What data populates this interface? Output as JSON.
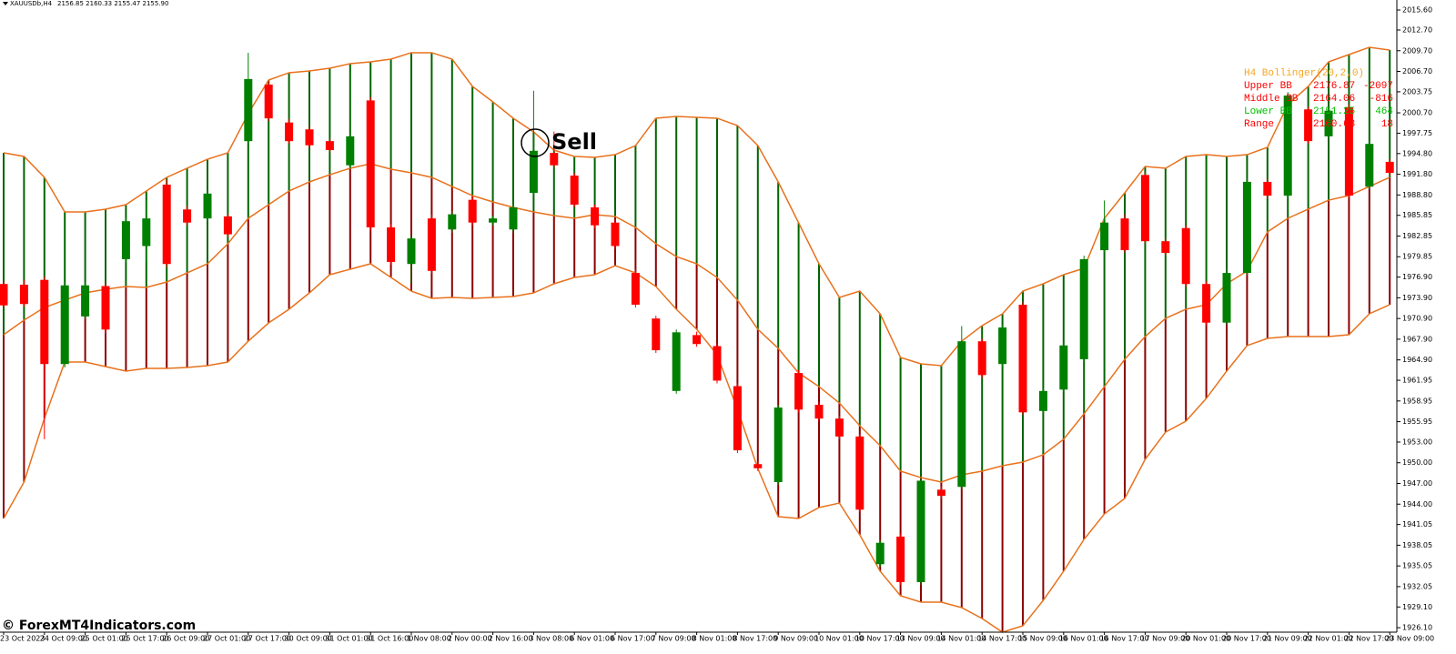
{
  "chart_data": {
    "type": "candlestick",
    "title": "XAUUSDb,H4",
    "subtitle": "2156.85 2160.33 2155.47 2155.90",
    "categories": [
      "23 Oct 2023",
      null,
      "24 Oct 09:00",
      null,
      "25 Oct 01:00",
      null,
      "25 Oct 17:00",
      null,
      "26 Oct 09:00",
      null,
      "27 Oct 01:00",
      null,
      "27 Oct 17:00",
      null,
      "30 Oct 09:00",
      null,
      "31 Oct 01:00",
      null,
      "31 Oct 16:00",
      null,
      "1 Nov 08:00",
      null,
      "2 Nov 00:00",
      null,
      "2 Nov 16:00",
      null,
      "3 Nov 08:00",
      null,
      "6 Nov 01:00",
      null,
      "6 Nov 17:00",
      null,
      "7 Nov 09:00",
      null,
      "8 Nov 01:00",
      null,
      "8 Nov 17:00",
      null,
      "9 Nov 09:00",
      null,
      "10 Nov 01:00",
      null,
      "10 Nov 17:00",
      null,
      "13 Nov 09:00",
      null,
      "14 Nov 01:00",
      null,
      "14 Nov 17:00",
      null,
      "15 Nov 09:00",
      null,
      "16 Nov 01:00",
      null,
      "16 Nov 17:00",
      null,
      "17 Nov 09:00",
      null,
      "20 Nov 01:00",
      null,
      "20 Nov 17:00",
      null,
      "21 Nov 09:00",
      null,
      "22 Nov 01:00",
      null,
      "22 Nov 17:00",
      null,
      "23 Nov 09:00"
    ],
    "open": [
      1975.9,
      1975.8,
      1976.5,
      1964.3,
      1971.2,
      1975.6,
      1979.5,
      1981.4,
      1990.3,
      1986.7,
      1985.4,
      1985.7,
      1996.6,
      2004.8,
      1999.3,
      1998.3,
      1996.6,
      1993.1,
      2002.5,
      1984.1,
      1978.8,
      1985.4,
      1983.8,
      1988.1,
      1984.8,
      1983.8,
      1989.1,
      1994.9,
      1991.6,
      1987.0,
      1984.8,
      1977.5,
      1970.9,
      1960.4,
      1968.5,
      1966.9,
      1961.1,
      1949.8,
      1947.2,
      1963.0,
      1958.4,
      1956.4,
      1953.8,
      1935.3,
      1939.3,
      1932.7,
      1946.1,
      1946.5,
      1967.6,
      1964.3,
      1972.9,
      1957.5,
      1960.6,
      1965.0,
      1980.8,
      1985.4,
      1991.7,
      1982.1,
      1984.0,
      1975.9,
      1970.3,
      1977.5,
      1990.7,
      1988.7,
      2001.2,
      1997.3,
      2001.5,
      1990.0,
      1993.6
    ],
    "high": [
      1976.3,
      1976.5,
      1977.0,
      1976.2,
      1976.2,
      1976.0,
      1985.5,
      1988.0,
      1991.0,
      1987.2,
      1989.5,
      1986.1,
      2009.4,
      2005.3,
      1999.8,
      1998.7,
      1997.0,
      1997.6,
      2003.0,
      1984.6,
      1983.0,
      1986.0,
      1986.5,
      1988.6,
      1985.8,
      1987.5,
      2003.9,
      1998.0,
      1992.0,
      1987.4,
      1985.2,
      1978.0,
      1971.3,
      1969.3,
      1969.0,
      1967.3,
      1961.5,
      1950.2,
      1958.4,
      1963.4,
      1958.8,
      1956.8,
      1954.2,
      1938.8,
      1939.7,
      1947.8,
      1946.5,
      1969.8,
      1968.0,
      1970.0,
      1973.3,
      1960.8,
      1967.4,
      1980.0,
      1988.0,
      1986.0,
      1992.1,
      1982.5,
      1984.4,
      1976.3,
      1978.0,
      1991.2,
      1991.2,
      2003.7,
      2001.6,
      2001.4,
      2002.0,
      1996.6,
      1994.0
    ],
    "low": [
      1972.5,
      1972.6,
      1953.4,
      1963.8,
      1970.8,
      1968.8,
      1979.0,
      1979.0,
      1978.3,
      1984.4,
      1985.0,
      1982.7,
      1996.2,
      1999.5,
      1996.2,
      1995.6,
      1994.9,
      1992.6,
      1983.6,
      1978.7,
      1976.0,
      1977.4,
      1983.3,
      1984.4,
      1984.4,
      1983.3,
      1988.7,
      1992.7,
      1987.0,
      1984.0,
      1981.0,
      1972.5,
      1965.9,
      1960.0,
      1966.8,
      1961.5,
      1951.4,
      1948.8,
      1946.8,
      1957.3,
      1956.0,
      1953.4,
      1942.8,
      1934.9,
      1932.3,
      1932.3,
      1944.8,
      1946.1,
      1962.3,
      1963.9,
      1956.9,
      1957.1,
      1960.2,
      1964.6,
      1980.4,
      1980.4,
      1981.7,
      1980.0,
      1975.5,
      1969.9,
      1969.9,
      1977.1,
      1988.3,
      1988.3,
      1996.2,
      1996.9,
      1988.3,
      1989.6,
      1991.6
    ],
    "close": [
      1972.8,
      1973.0,
      1964.3,
      1975.7,
      1975.7,
      1969.3,
      1985.0,
      1985.4,
      1978.8,
      1984.8,
      1989.0,
      1983.1,
      2005.6,
      1999.9,
      1996.6,
      1996.0,
      1995.3,
      1997.3,
      1984.1,
      1979.1,
      1982.5,
      1977.8,
      1986.0,
      1984.8,
      1985.4,
      1987.0,
      1995.2,
      1993.1,
      1987.4,
      1984.4,
      1981.4,
      1972.9,
      1966.3,
      1968.9,
      1967.2,
      1961.9,
      1951.8,
      1949.2,
      1958.0,
      1957.7,
      1956.4,
      1953.8,
      1943.2,
      1938.4,
      1932.7,
      1947.4,
      1945.2,
      1967.6,
      1962.7,
      1969.6,
      1957.3,
      1960.4,
      1967.0,
      1979.5,
      1984.8,
      1980.8,
      1982.1,
      1980.4,
      1975.9,
      1970.3,
      1977.5,
      1990.7,
      1988.7,
      2003.2,
      1996.6,
      2001.0,
      1988.7,
      1996.2,
      1992.0
    ],
    "up_color": "#008000",
    "down_color": "#ff0000",
    "bands": {
      "line_color": "#e8711c",
      "upper_fill": "#006400",
      "lower_fill": "#8b0000",
      "upper": [
        1994.91,
        1994.38,
        1991.35,
        1986.34,
        1986.34,
        1986.74,
        1987.39,
        1989.37,
        1991.35,
        1992.67,
        1993.98,
        1994.91,
        2000.57,
        2005.45,
        2006.51,
        2006.77,
        2007.16,
        2007.82,
        2008.09,
        2008.48,
        2009.41,
        2009.41,
        2008.48,
        2004.53,
        2002.29,
        1999.92,
        1997.94,
        1995.3,
        1994.38,
        1994.25,
        1994.64,
        1995.96,
        1999.92,
        2000.18,
        2000.05,
        1999.92,
        1998.86,
        1995.96,
        1990.69,
        1984.76,
        1978.83,
        1973.95,
        1974.87,
        1971.58,
        1965.25,
        1964.33,
        1964.07,
        1967.62,
        1969.87,
        1971.58,
        1974.87,
        1975.93,
        1977.25,
        1978.17,
        1985.42,
        1989.11,
        1992.93,
        1992.67,
        1994.38,
        1994.64,
        1994.38,
        1994.64,
        1995.7,
        2001.89,
        2004.53,
        2008.09,
        2009.14,
        2010.2,
        2009.8
      ],
      "middle": [
        1968.55,
        1970.66,
        1972.5,
        1973.56,
        1974.61,
        1975.14,
        1975.53,
        1975.4,
        1976.19,
        1977.51,
        1978.83,
        1981.73,
        1985.42,
        1987.39,
        1989.37,
        1990.69,
        1991.74,
        1992.67,
        1993.33,
        1992.54,
        1992.01,
        1991.35,
        1990.03,
        1988.71,
        1987.79,
        1987.0,
        1986.34,
        1985.81,
        1985.42,
        1985.95,
        1985.68,
        1984.1,
        1981.73,
        1979.88,
        1978.83,
        1976.85,
        1973.56,
        1969.34,
        1966.57,
        1963.01,
        1961.03,
        1958.66,
        1955.37,
        1952.47,
        1948.78,
        1947.85,
        1947.2,
        1948.25,
        1948.78,
        1949.57,
        1950.1,
        1951.15,
        1953.39,
        1957.08,
        1961.03,
        1964.99,
        1968.28,
        1970.92,
        1972.24,
        1972.9,
        1975.93,
        1977.77,
        1983.44,
        1985.42,
        1986.74,
        1988.05,
        1988.71,
        1990.03,
        1991.35
      ],
      "lower": [
        1941.92,
        1947.2,
        1956.42,
        1964.59,
        1964.59,
        1963.93,
        1963.28,
        1963.67,
        1963.67,
        1963.8,
        1964.07,
        1964.59,
        1967.62,
        1970.26,
        1972.24,
        1974.61,
        1977.25,
        1978.04,
        1978.83,
        1976.85,
        1974.87,
        1973.82,
        1973.95,
        1973.82,
        1973.95,
        1974.08,
        1974.61,
        1975.93,
        1976.85,
        1977.25,
        1978.56,
        1977.51,
        1975.53,
        1972.24,
        1969.34,
        1965.65,
        1957.74,
        1949.17,
        1942.19,
        1941.92,
        1943.51,
        1944.16,
        1939.55,
        1934.28,
        1930.72,
        1929.8,
        1929.8,
        1929.01,
        1927.43,
        1925.45,
        1926.37,
        1930.06,
        1934.28,
        1938.89,
        1942.58,
        1944.82,
        1950.49,
        1954.44,
        1956.03,
        1959.32,
        1963.28,
        1966.97,
        1968.02,
        1968.28,
        1968.28,
        1968.28,
        1968.55,
        1971.58,
        1972.9
      ]
    },
    "ylim": [
      1925.45,
      2017.05
    ],
    "yticks": [
      {
        "value": 2015.6,
        "label": "2015.60"
      },
      {
        "value": 2012.7,
        "label": "2012.70"
      },
      {
        "value": 2009.7,
        "label": "2009.70"
      },
      {
        "value": 2006.7,
        "label": "2006.70"
      },
      2003.75,
      {
        "value": 2000.7,
        "label": "2000.70"
      },
      1997.75,
      {
        "value": 1994.8,
        "label": "1994.80"
      },
      {
        "value": 1991.8,
        "label": "1991.80"
      },
      {
        "value": 1988.8,
        "label": "1988.80"
      },
      1985.85,
      1982.85,
      1979.85,
      {
        "value": 1976.9,
        "label": "1976.90"
      },
      {
        "value": 1973.9,
        "label": "1973.90"
      },
      {
        "value": 1970.9,
        "label": "1970.90"
      },
      {
        "value": 1967.9,
        "label": "1967.90"
      },
      {
        "value": 1964.9,
        "label": "1964.90"
      },
      1961.95,
      1958.95,
      1955.95,
      {
        "value": 1953,
        "label": "1953.00"
      },
      {
        "value": 1950,
        "label": "1950.00"
      },
      {
        "value": 1947,
        "label": "1947.00"
      },
      {
        "value": 1944,
        "label": "1944.00"
      },
      1941.05,
      1938.05,
      1935.05,
      1932.05,
      {
        "value": 1929.1,
        "label": "1929.10"
      },
      {
        "value": 1926.1,
        "label": "1926.10"
      }
    ],
    "annotation": "Sell",
    "indicator_legend": {
      "title": "H4 Bollinger(20,2,0)",
      "rows": [
        {
          "label": "Upper BB",
          "value": 2176.87,
          "change": -2097,
          "color": "#ff0000"
        },
        {
          "label": "Middle BB",
          "value": 2164.06,
          "change": -816,
          "color": "#ff0000"
        },
        {
          "label": "Lower BB",
          "value": 2151.25,
          "change": 464,
          "color": "#00c000"
        },
        {
          "label": "Range",
          "value": 2160.68,
          "change": 18,
          "color": "#ff0000"
        }
      ],
      "title_color": "#f5a623"
    },
    "watermark": "© ForexMT4Indicators.com"
  }
}
